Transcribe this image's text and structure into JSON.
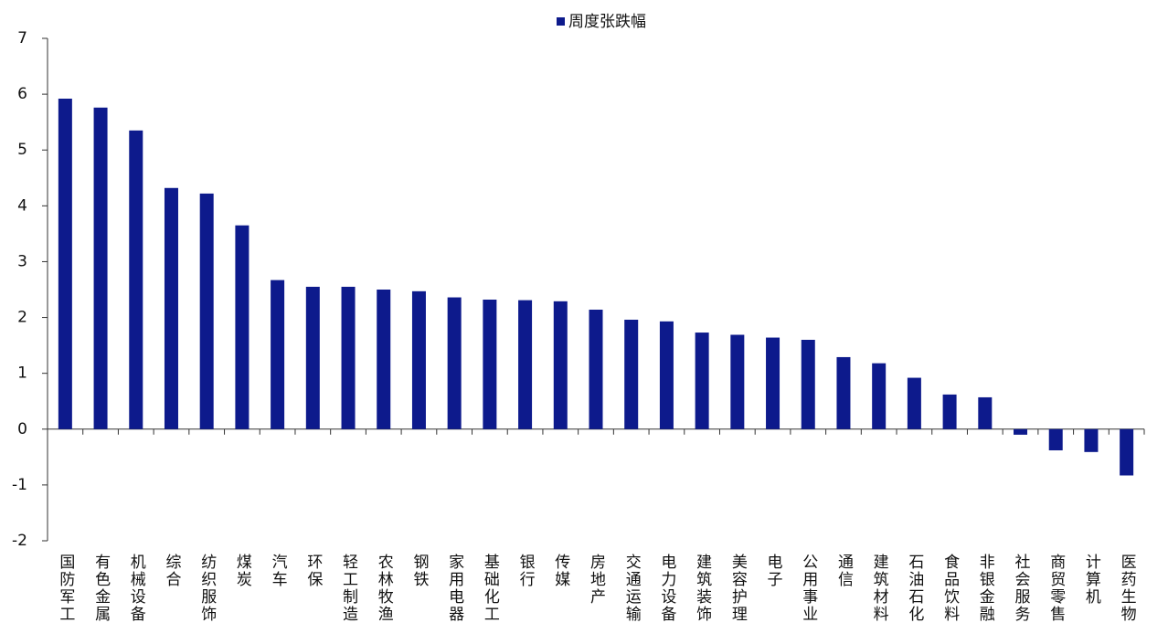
{
  "chart_data": {
    "type": "bar",
    "categories": [
      "国防军工",
      "有色金属",
      "机械设备",
      "综合",
      "纺织服饰",
      "煤炭",
      "汽车",
      "环保",
      "轻工制造",
      "农林牧渔",
      "钢铁",
      "家用电器",
      "基础化工",
      "银行",
      "传媒",
      "房地产",
      "交通运输",
      "电力设备",
      "建筑装饰",
      "美容护理",
      "电子",
      "公用事业",
      "通信",
      "建筑材料",
      "石油石化",
      "食品饮料",
      "非银金融",
      "社会服务",
      "商贸零售",
      "计算机",
      "医药生物"
    ],
    "series": [
      {
        "name": "周度张跌幅",
        "color": "#0d1a8c",
        "values": [
          5.92,
          5.76,
          5.35,
          4.32,
          4.22,
          3.65,
          2.67,
          2.55,
          2.55,
          2.5,
          2.47,
          2.36,
          2.32,
          2.31,
          2.29,
          2.14,
          1.96,
          1.93,
          1.73,
          1.69,
          1.64,
          1.6,
          1.29,
          1.18,
          0.92,
          0.62,
          0.57,
          -0.1,
          -0.38,
          -0.41,
          -0.83
        ]
      }
    ],
    "ylim": [
      -2,
      7
    ],
    "yticks": [
      -2,
      -1,
      0,
      1,
      2,
      3,
      4,
      5,
      6,
      7
    ],
    "grid": false,
    "legend": "top"
  }
}
